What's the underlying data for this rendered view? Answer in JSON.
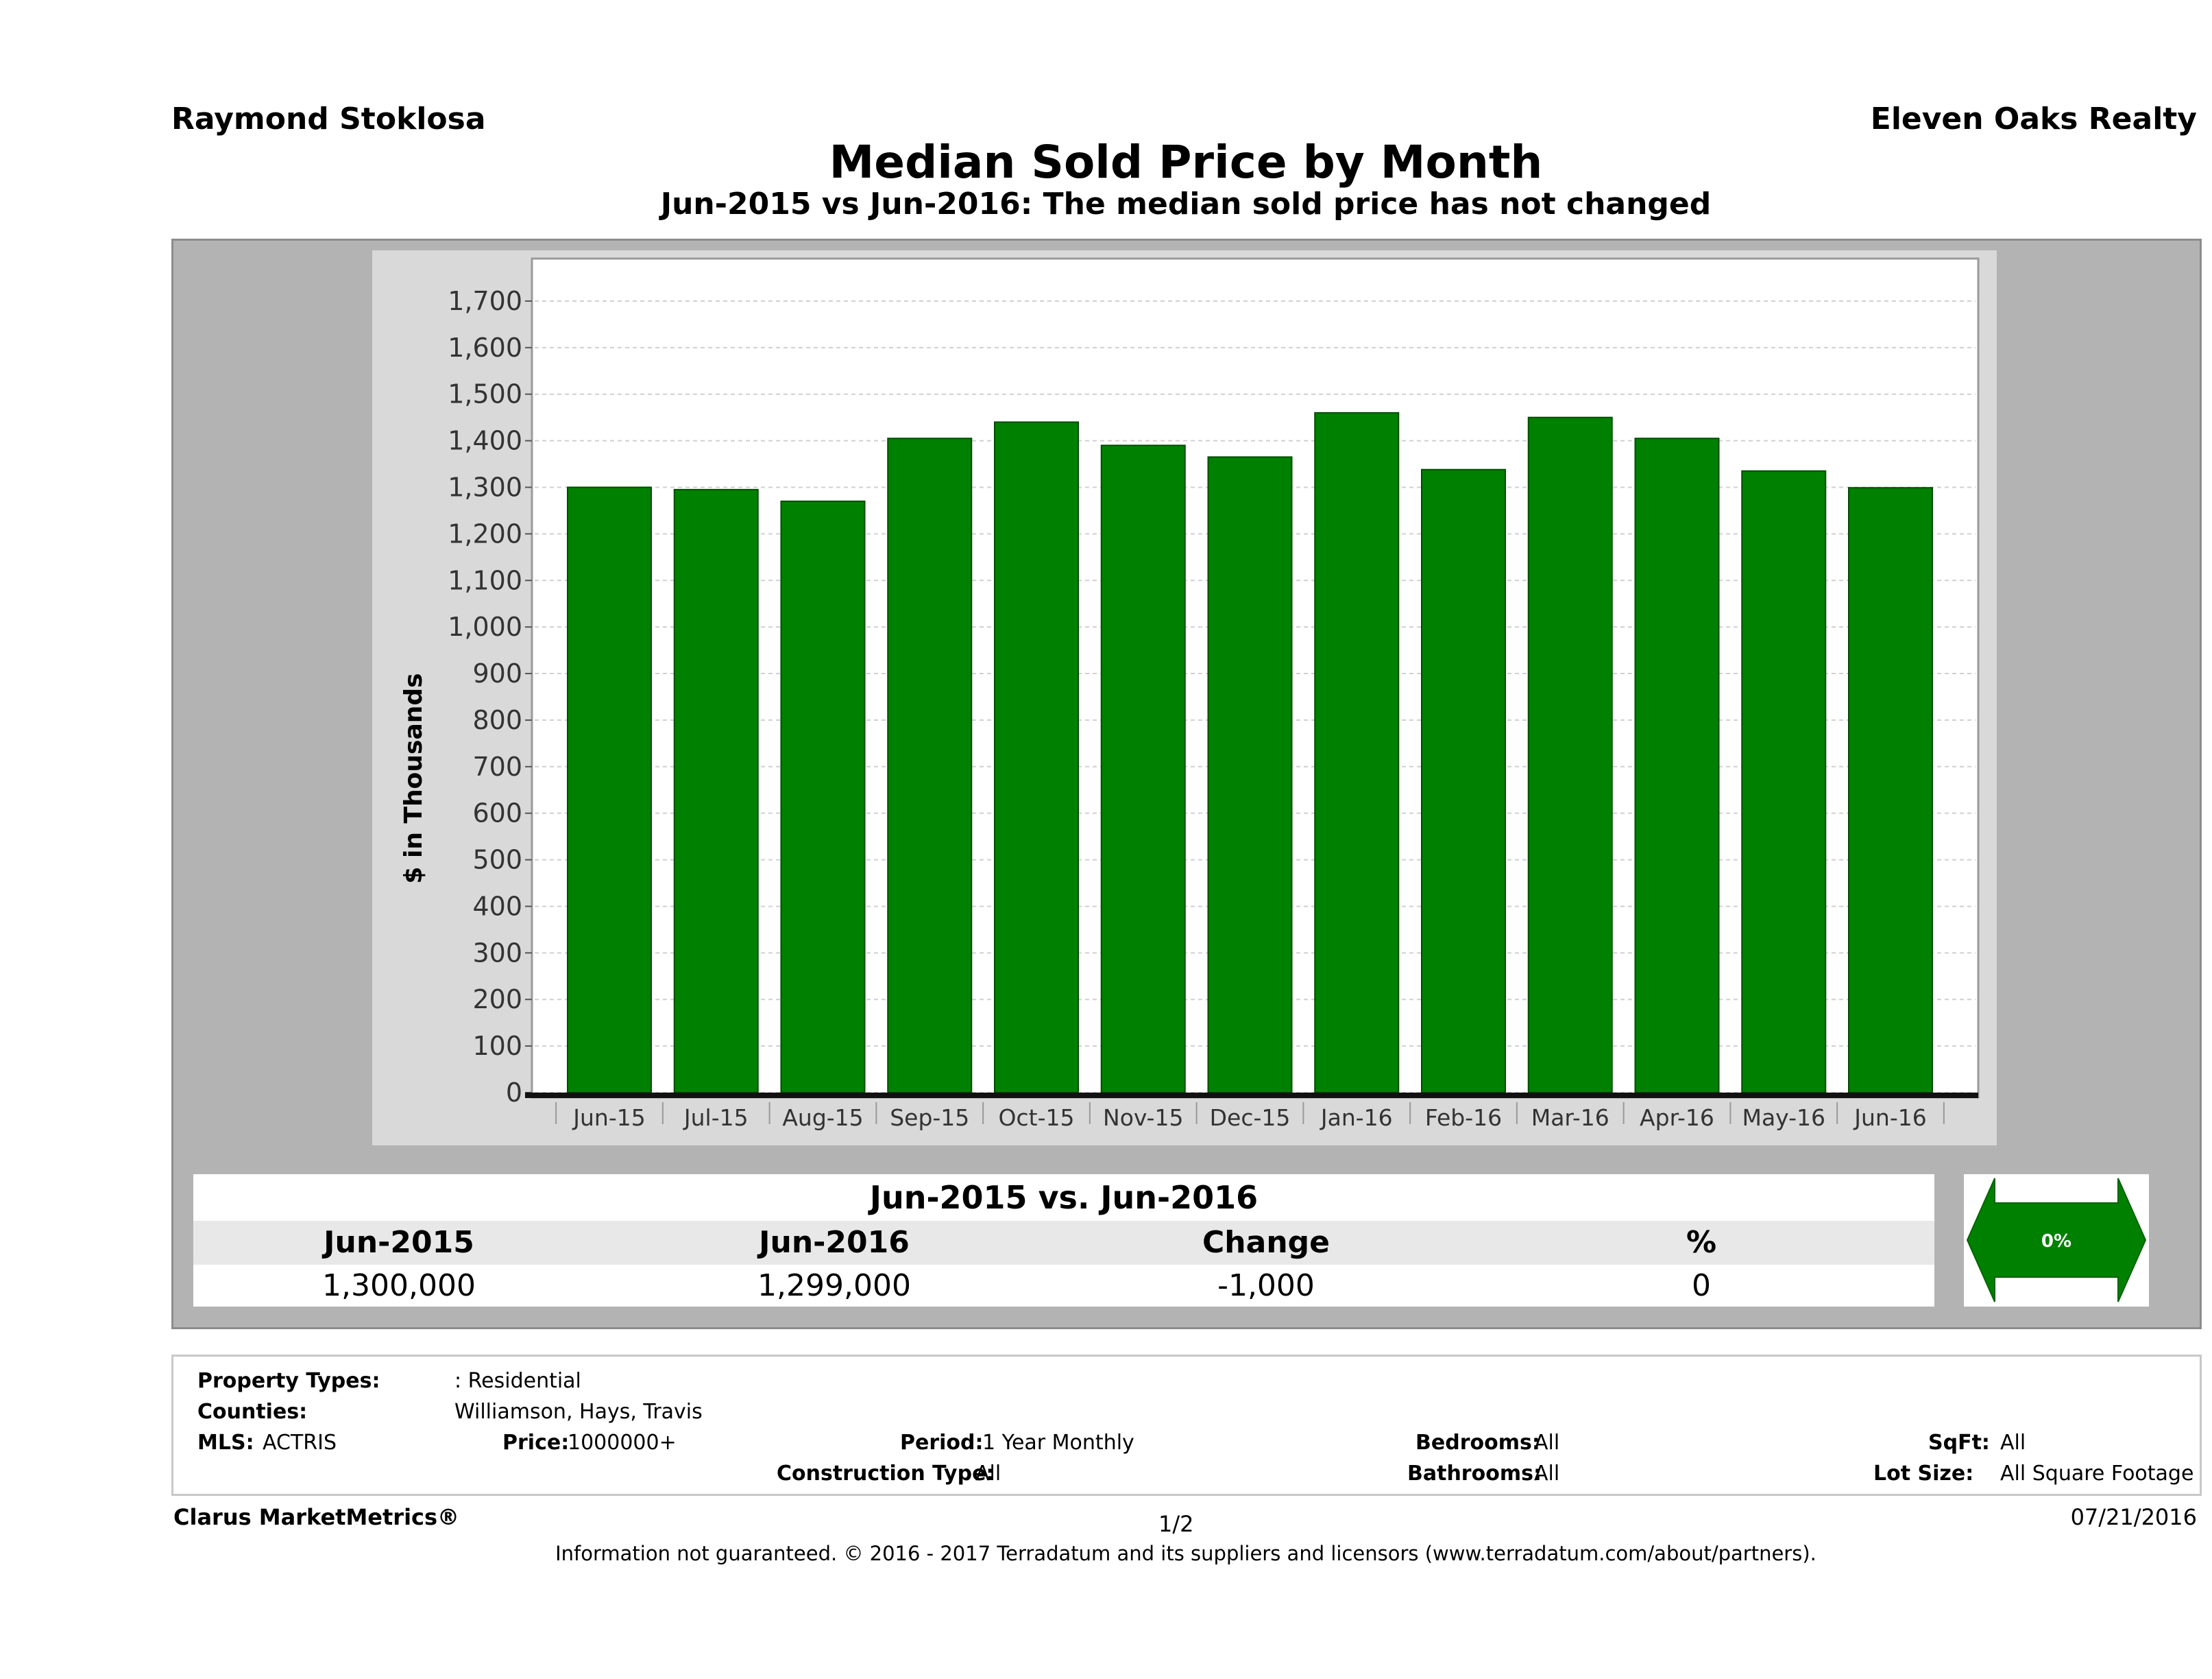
{
  "header": {
    "agent_name": "Raymond Stoklosa",
    "brokerage": "Eleven Oaks Realty",
    "title": "Median Sold Price by Month",
    "subtitle": "Jun-2015 vs Jun-2016: The median sold price has not changed"
  },
  "chart_data": {
    "type": "bar",
    "title": "Median Sold Price by Month",
    "ylabel": "$ in Thousands",
    "xlabel": "",
    "categories": [
      "Jun-15",
      "Jul-15",
      "Aug-15",
      "Sep-15",
      "Oct-15",
      "Nov-15",
      "Dec-15",
      "Jan-16",
      "Feb-16",
      "Mar-16",
      "Apr-16",
      "May-16",
      "Jun-16"
    ],
    "values": [
      1300,
      1295,
      1270,
      1405,
      1440,
      1390,
      1365,
      1460,
      1338,
      1450,
      1405,
      1335,
      1299
    ],
    "ylim": [
      0,
      1750
    ],
    "yticks": [
      0,
      100,
      200,
      300,
      400,
      500,
      600,
      700,
      800,
      900,
      1000,
      1100,
      1200,
      1300,
      1400,
      1500,
      1600,
      1700
    ],
    "ytick_labels": [
      "0",
      "100",
      "200",
      "300",
      "400",
      "500",
      "600",
      "700",
      "800",
      "900",
      "1,000",
      "1,100",
      "1,200",
      "1,300",
      "1,400",
      "1,500",
      "1,600",
      "1,700"
    ],
    "grid": true,
    "bar_color": "#008000",
    "legend": "none"
  },
  "comparison": {
    "title": "Jun-2015 vs. Jun-2016",
    "headers": [
      "Jun-2015",
      "Jun-2016",
      "Change",
      "%"
    ],
    "values": [
      "1,300,000",
      "1,299,000",
      "-1,000",
      "0"
    ],
    "indicator_label": "0%",
    "indicator_color": "#008000"
  },
  "criteria": {
    "property_types_label": "Property Types:",
    "property_types_value": ": Residential",
    "counties_label": "Counties:",
    "counties_value": "Williamson, Hays, Travis",
    "mls_label": "MLS:",
    "mls_value": "ACTRIS",
    "price_label": "Price:",
    "price_value": "1000000+",
    "period_label": "Period:",
    "period_value": "1 Year Monthly",
    "construction_label": "Construction Type:",
    "construction_value": "All",
    "bedrooms_label": "Bedrooms:",
    "bedrooms_value": "All",
    "bathrooms_label": "Bathrooms:",
    "bathrooms_value": "All",
    "sqft_label": "SqFt:",
    "sqft_value": "All",
    "lotsize_label": "Lot Size:",
    "lotsize_value": "All Square Footage"
  },
  "footer": {
    "product": "Clarus MarketMetrics®",
    "page": "1/2",
    "date": "07/21/2016",
    "disclaimer": "Information not guaranteed. © 2016 - 2017 Terradatum and its suppliers and licensors (www.terradatum.com/about/partners)."
  }
}
